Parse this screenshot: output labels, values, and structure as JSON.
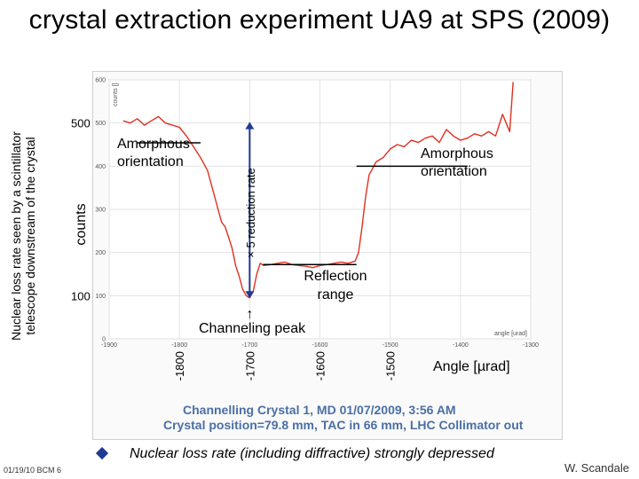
{
  "slide": {
    "title": "crystal extraction experiment UA9 at SPS (2009)",
    "side_caption_line1": "Nuclear loss rate seen by a scintillator",
    "side_caption_line2": "telescope downstream of the crystal",
    "footer_date": "01/19/10 BCM 6",
    "author": "W. Scandale",
    "bullet": "Nuclear loss rate",
    "bullet_rest": " (including diffractive) strongly depressed"
  },
  "chart_data": {
    "type": "line",
    "ylabel_small": "counts []",
    "xlabel_small": "angle [urad]",
    "xlim": [
      -1900,
      -1300
    ],
    "ylim": [
      0,
      600
    ],
    "x_ticks": [
      -1900,
      -1800,
      -1700,
      -1600,
      -1500,
      -1400,
      -1300
    ],
    "y_ticks": [
      0,
      100,
      200,
      300,
      400,
      500,
      600
    ],
    "big_y_labels": [
      {
        "value": 500,
        "text": "500"
      },
      {
        "value": 100,
        "text": "100"
      }
    ],
    "big_x_labels": [
      {
        "value": -1800,
        "text": "-1800"
      },
      {
        "value": -1700,
        "text": "-1700"
      },
      {
        "value": -1600,
        "text": "-1600"
      },
      {
        "value": -1500,
        "text": "-1500"
      }
    ],
    "ylabel": "counts",
    "xlabel": "Angle [µrad]",
    "annotations": {
      "amorphous_left": [
        "Amorphous",
        "orientation"
      ],
      "amorphous_right": [
        "Amorphous",
        "orientation"
      ],
      "reduction": "× 5 reduction rate",
      "reflection": [
        "Reflection",
        "range"
      ],
      "channeling": "Channeling peak",
      "arrow_glyph": "↑"
    },
    "caption_lines": [
      "Channelling Crystal 1, MD 01/07/2009, 3:56 AM",
      "Crystal position=79.8 mm, TAC in 66 mm, LHC Collimator out"
    ],
    "series": [
      {
        "color": "#e03020",
        "x": [
          -1880,
          -1870,
          -1860,
          -1850,
          -1840,
          -1830,
          -1820,
          -1810,
          -1800,
          -1790,
          -1780,
          -1770,
          -1760,
          -1750,
          -1745,
          -1740,
          -1735,
          -1730,
          -1725,
          -1720,
          -1715,
          -1710,
          -1705,
          -1700,
          -1695,
          -1690,
          -1685,
          -1680,
          -1670,
          -1660,
          -1650,
          -1640,
          -1630,
          -1620,
          -1610,
          -1600,
          -1590,
          -1580,
          -1570,
          -1560,
          -1550,
          -1545,
          -1540,
          -1535,
          -1530,
          -1525,
          -1520,
          -1515,
          -1510,
          -1500,
          -1490,
          -1480,
          -1470,
          -1460,
          -1450,
          -1440,
          -1430,
          -1420,
          -1410,
          -1400,
          -1390,
          -1380,
          -1370,
          -1360,
          -1350,
          -1340,
          -1335,
          -1330,
          -1325
        ],
        "y": [
          505,
          500,
          510,
          495,
          505,
          515,
          500,
          495,
          490,
          470,
          445,
          420,
          390,
          330,
          300,
          270,
          260,
          235,
          210,
          170,
          145,
          115,
          100,
          95,
          110,
          150,
          175,
          170,
          172,
          175,
          178,
          172,
          170,
          168,
          165,
          170,
          172,
          175,
          178,
          175,
          180,
          200,
          260,
          330,
          380,
          395,
          410,
          415,
          420,
          440,
          450,
          445,
          460,
          455,
          465,
          470,
          455,
          485,
          470,
          460,
          465,
          475,
          470,
          480,
          470,
          520,
          500,
          480,
          595
        ]
      }
    ]
  }
}
